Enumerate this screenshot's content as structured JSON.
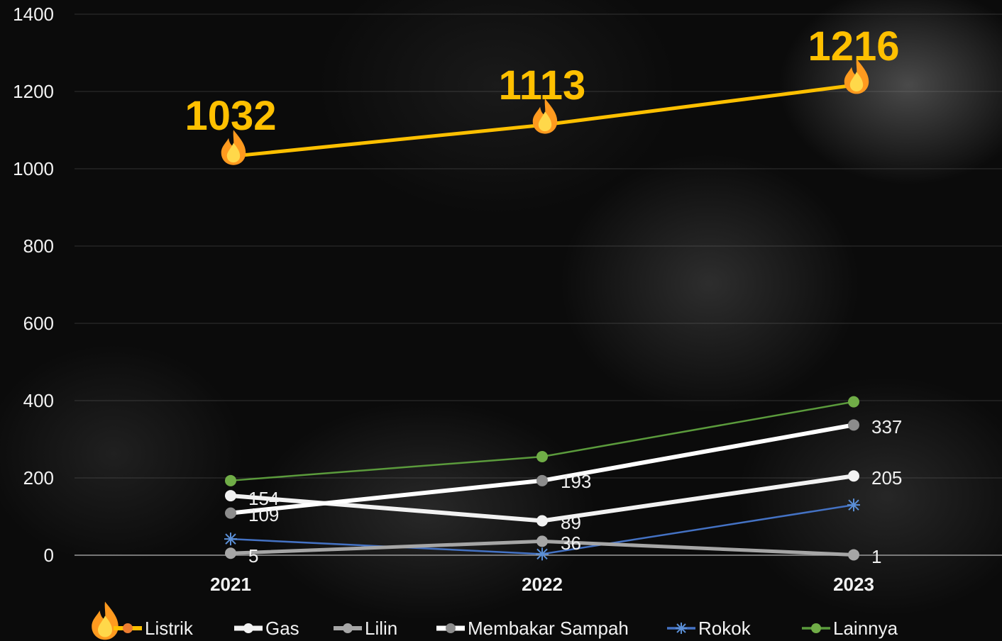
{
  "chart_data": {
    "type": "line",
    "categories": [
      "2021",
      "2022",
      "2023"
    ],
    "ylim": [
      0,
      1400
    ],
    "yticks": [
      0,
      200,
      400,
      600,
      800,
      1000,
      1200,
      1400
    ],
    "grid": true,
    "legend_position": "bottom",
    "series": [
      {
        "name": "Listrik",
        "values": [
          1032,
          1113,
          1216
        ],
        "color": "#ffc000",
        "marker": "circle",
        "marker_color": "#ed7d31",
        "labels": [
          "1032",
          "1113",
          "1216"
        ]
      },
      {
        "name": "Gas",
        "values": [
          154,
          89,
          205
        ],
        "color": "#f2f2f2",
        "marker": "circle",
        "marker_color": "#f2f2f2",
        "labels": [
          "154",
          "89",
          "205"
        ]
      },
      {
        "name": "Lilin",
        "values": [
          5,
          36,
          1
        ],
        "color": "#a6a6a6",
        "marker": "circle",
        "marker_color": "#a6a6a6",
        "labels": [
          "5",
          "36",
          "1"
        ]
      },
      {
        "name": "Membakar Sampah",
        "values": [
          109,
          193,
          337
        ],
        "color": "#ffffff",
        "marker": "circle",
        "marker_color": "#8c8c8c",
        "labels": [
          "109",
          "193",
          "337"
        ]
      },
      {
        "name": "Rokok",
        "values": [
          42,
          3,
          130
        ],
        "color": "#4472c4",
        "marker": "star",
        "marker_color": "#5b8fd6",
        "labels": []
      },
      {
        "name": "Lainnya",
        "values": [
          193,
          255,
          397
        ],
        "color": "#5b9b3c",
        "marker": "circle",
        "marker_color": "#70ad47",
        "labels": []
      }
    ]
  }
}
